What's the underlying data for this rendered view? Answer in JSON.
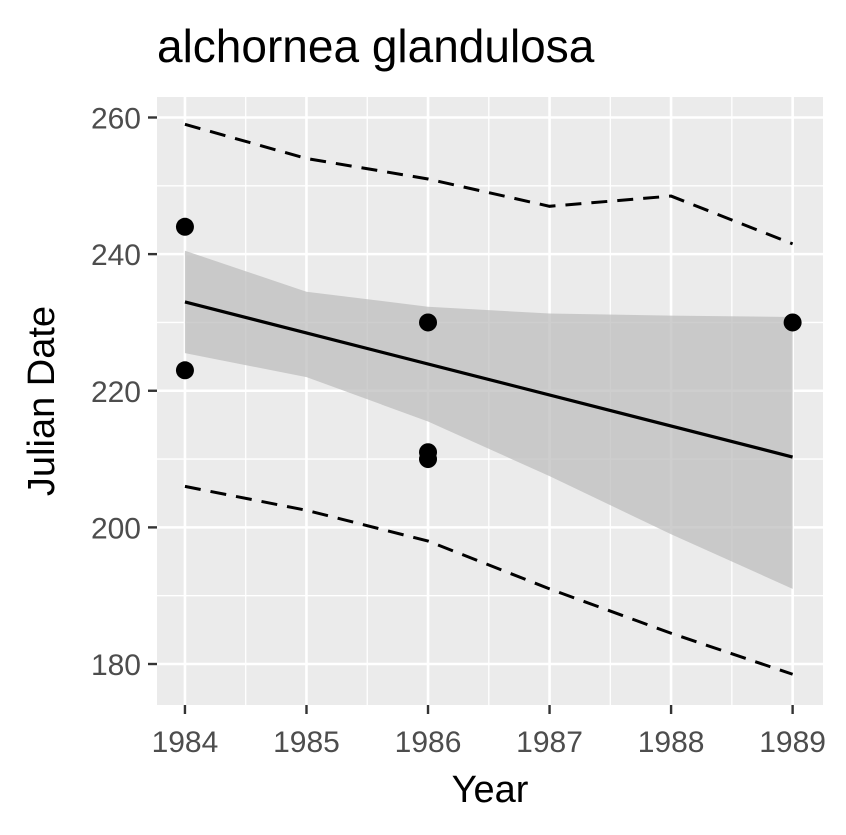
{
  "chart_data": {
    "type": "scatter",
    "title": "alchornea glandulosa",
    "xlabel": "Year",
    "ylabel": "Julian Date",
    "xlim": [
      1983.77,
      1989.25
    ],
    "ylim": [
      174,
      263
    ],
    "x_ticks": [
      "1984",
      "1985",
      "1986",
      "1987",
      "1988",
      "1989"
    ],
    "y_ticks": [
      "180",
      "200",
      "220",
      "240",
      "260"
    ],
    "grid": true,
    "legend": "none",
    "colors": {
      "panel": "#ebebeb",
      "grid": "#ffffff",
      "points": "#000000",
      "ribbon": "#bdbdbd",
      "tick_text": "#4d4d4d"
    },
    "points": [
      {
        "x": 1984,
        "y": 244
      },
      {
        "x": 1984,
        "y": 223
      },
      {
        "x": 1986,
        "y": 230
      },
      {
        "x": 1986,
        "y": 211
      },
      {
        "x": 1986,
        "y": 210
      },
      {
        "x": 1989,
        "y": 230
      }
    ],
    "fit_line": {
      "x": [
        1984,
        1989
      ],
      "y": [
        233,
        210.3
      ]
    },
    "confidence_band": {
      "x": [
        1984,
        1985,
        1986,
        1987,
        1988,
        1989
      ],
      "upper": [
        240.5,
        234.5,
        232.3,
        231.3,
        231,
        230.8
      ],
      "lower": [
        225.5,
        222,
        215.5,
        207.5,
        199,
        191
      ]
    },
    "prediction_upper": {
      "x": [
        1984,
        1985,
        1986,
        1987,
        1988,
        1989
      ],
      "y": [
        259,
        254,
        251,
        247,
        248.5,
        241.5
      ]
    },
    "prediction_lower": {
      "x": [
        1984,
        1985,
        1986,
        1987,
        1988,
        1989
      ],
      "y": [
        206,
        202.5,
        198,
        191,
        184.5,
        178.5
      ]
    }
  }
}
